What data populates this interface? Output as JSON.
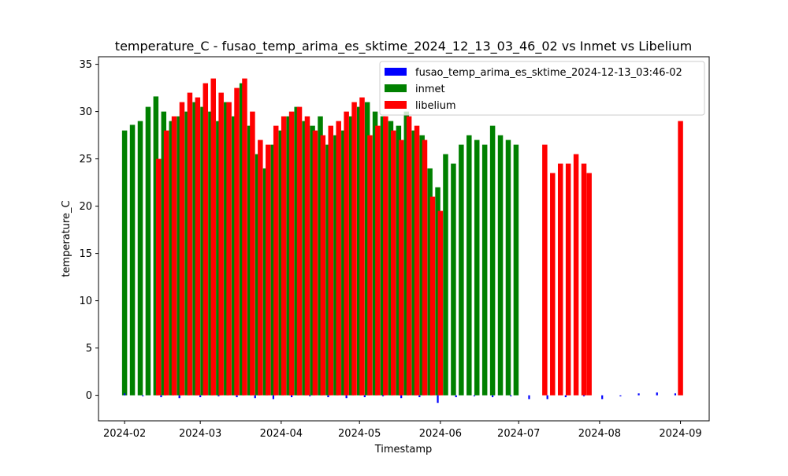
{
  "chart_data": {
    "type": "bar",
    "title": "temperature_C - fusao_temp_arima_es_sktime_2024_12_13_03_46_02 vs Inmet vs Libelium",
    "xlabel": "Timestamp",
    "ylabel": "temperature_C",
    "xlim": [
      "2024-01-22",
      "2024-09-12"
    ],
    "ylim": [
      -2.7,
      35.8
    ],
    "xticks": [
      "2024-02",
      "2024-03",
      "2024-04",
      "2024-05",
      "2024-06",
      "2024-07",
      "2024-08",
      "2024-09"
    ],
    "yticks": [
      0,
      5,
      10,
      15,
      20,
      25,
      30,
      35
    ],
    "grid": false,
    "legend_position": "top-right",
    "series": [
      {
        "name": "fusao_temp_arima_es_sktime_2024-12-13_03:46-02",
        "color": "#0000ff",
        "x": [
          "2024-02-01",
          "2024-02-08",
          "2024-02-15",
          "2024-02-22",
          "2024-03-01",
          "2024-03-08",
          "2024-03-15",
          "2024-03-22",
          "2024-03-29",
          "2024-04-05",
          "2024-04-12",
          "2024-04-19",
          "2024-04-26",
          "2024-05-03",
          "2024-05-10",
          "2024-05-17",
          "2024-05-24",
          "2024-05-31",
          "2024-06-07",
          "2024-06-14",
          "2024-06-21",
          "2024-06-28",
          "2024-07-05",
          "2024-07-12",
          "2024-07-19",
          "2024-07-26",
          "2024-08-02",
          "2024-08-09",
          "2024-08-16",
          "2024-08-23",
          "2024-08-30"
        ],
        "values": [
          0.2,
          -0.1,
          -0.2,
          -0.3,
          -0.2,
          -0.1,
          -0.2,
          -0.3,
          -0.4,
          -0.2,
          -0.1,
          -0.2,
          -0.3,
          -0.2,
          -0.1,
          -0.3,
          -0.2,
          -0.8,
          -0.2,
          -0.1,
          -0.2,
          -0.1,
          -0.4,
          -0.4,
          -0.2,
          -0.1,
          -0.4,
          -0.1,
          0.2,
          0.3,
          0.2
        ]
      },
      {
        "name": "inmet",
        "color": "#008000",
        "x": [
          "2024-02-01",
          "2024-02-04",
          "2024-02-07",
          "2024-02-10",
          "2024-02-13",
          "2024-02-16",
          "2024-02-19",
          "2024-02-22",
          "2024-02-25",
          "2024-02-28",
          "2024-03-02",
          "2024-03-05",
          "2024-03-08",
          "2024-03-11",
          "2024-03-14",
          "2024-03-17",
          "2024-03-20",
          "2024-03-23",
          "2024-03-26",
          "2024-03-29",
          "2024-04-01",
          "2024-04-04",
          "2024-04-07",
          "2024-04-10",
          "2024-04-13",
          "2024-04-16",
          "2024-04-19",
          "2024-04-22",
          "2024-04-25",
          "2024-04-28",
          "2024-05-01",
          "2024-05-04",
          "2024-05-07",
          "2024-05-10",
          "2024-05-13",
          "2024-05-16",
          "2024-05-19",
          "2024-05-22",
          "2024-05-25",
          "2024-05-28",
          "2024-05-31",
          "2024-06-03",
          "2024-06-06",
          "2024-06-09",
          "2024-06-12",
          "2024-06-15",
          "2024-06-18",
          "2024-06-21",
          "2024-06-24",
          "2024-06-27",
          "2024-06-30"
        ],
        "values": [
          28.0,
          28.6,
          29.0,
          30.5,
          31.6,
          30.0,
          29.0,
          29.5,
          30.0,
          31.0,
          30.5,
          30.0,
          29.0,
          31.0,
          29.5,
          33.0,
          28.5,
          25.5,
          24.0,
          26.5,
          28.0,
          29.5,
          30.5,
          29.0,
          28.5,
          29.5,
          26.5,
          27.5,
          28.0,
          29.5,
          30.5,
          31.0,
          30.0,
          29.5,
          29.0,
          28.5,
          30.0,
          28.0,
          27.5,
          24.0,
          22.0,
          25.5,
          24.5,
          26.5,
          27.5,
          27.0,
          26.5,
          28.5,
          27.5,
          27.0,
          26.5
        ]
      },
      {
        "name": "libelium",
        "color": "#ff0000",
        "x": [
          "2024-02-14",
          "2024-02-17",
          "2024-02-20",
          "2024-02-23",
          "2024-02-26",
          "2024-02-29",
          "2024-03-03",
          "2024-03-06",
          "2024-03-09",
          "2024-03-12",
          "2024-03-15",
          "2024-03-18",
          "2024-03-21",
          "2024-03-24",
          "2024-03-27",
          "2024-03-30",
          "2024-04-02",
          "2024-04-05",
          "2024-04-08",
          "2024-04-11",
          "2024-04-14",
          "2024-04-17",
          "2024-04-20",
          "2024-04-23",
          "2024-04-26",
          "2024-04-29",
          "2024-05-02",
          "2024-05-05",
          "2024-05-08",
          "2024-05-11",
          "2024-05-14",
          "2024-05-17",
          "2024-05-20",
          "2024-05-23",
          "2024-05-26",
          "2024-05-29",
          "2024-06-01",
          "2024-07-11",
          "2024-07-14",
          "2024-07-17",
          "2024-07-20",
          "2024-07-23",
          "2024-07-26",
          "2024-07-28",
          "2024-09-01"
        ],
        "values": [
          25.0,
          28.0,
          29.5,
          31.0,
          32.0,
          31.5,
          33.0,
          33.5,
          32.0,
          31.0,
          32.5,
          33.5,
          30.0,
          27.0,
          26.5,
          28.5,
          29.5,
          30.0,
          30.5,
          29.5,
          28.0,
          27.5,
          28.5,
          29.0,
          30.0,
          31.0,
          31.5,
          27.5,
          28.5,
          29.5,
          28.0,
          27.0,
          29.5,
          28.5,
          27.0,
          21.0,
          19.5,
          26.5,
          23.5,
          24.5,
          24.5,
          25.5,
          24.5,
          23.5,
          29.0
        ]
      }
    ]
  }
}
